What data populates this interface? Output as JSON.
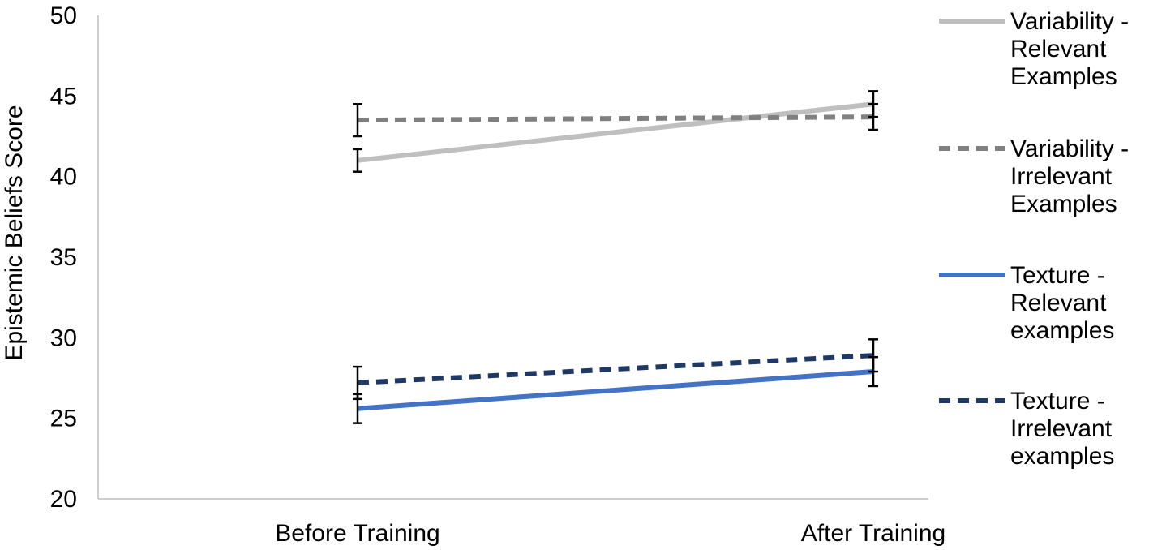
{
  "chart_data": {
    "type": "line",
    "categories": [
      "Before Training",
      "After Training"
    ],
    "ylabel": "Epistemic Beliefs Score",
    "xlabel": "",
    "ylim": [
      20,
      50
    ],
    "yticks": [
      20,
      25,
      30,
      35,
      40,
      45,
      50
    ],
    "grid": false,
    "legend_position": "right",
    "series": [
      {
        "name": "Variability - Relevant Examples",
        "legend_lines": [
          "Variability -",
          "Relevant",
          "Examples"
        ],
        "values": [
          41.0,
          44.5
        ],
        "errors": [
          0.7,
          0.8
        ],
        "color": "#BFBFBF",
        "dash": "solid"
      },
      {
        "name": "Variability - Irrelevant Examples",
        "legend_lines": [
          "Variability -",
          "Irrelevant",
          "Examples"
        ],
        "values": [
          43.5,
          43.7
        ],
        "errors": [
          1.0,
          0.8
        ],
        "color": "#808080",
        "dash": "dashed"
      },
      {
        "name": "Texture - Relevant examples",
        "legend_lines": [
          "Texture -",
          "Relevant",
          "examples"
        ],
        "values": [
          25.6,
          27.9
        ],
        "errors": [
          0.9,
          0.9
        ],
        "color": "#4472C4",
        "dash": "solid"
      },
      {
        "name": "Texture - Irrelevant examples",
        "legend_lines": [
          "Texture -",
          "Irrelevant",
          "examples"
        ],
        "values": [
          27.2,
          28.9
        ],
        "errors": [
          1.0,
          1.0
        ],
        "color": "#203864",
        "dash": "dashed"
      }
    ]
  }
}
